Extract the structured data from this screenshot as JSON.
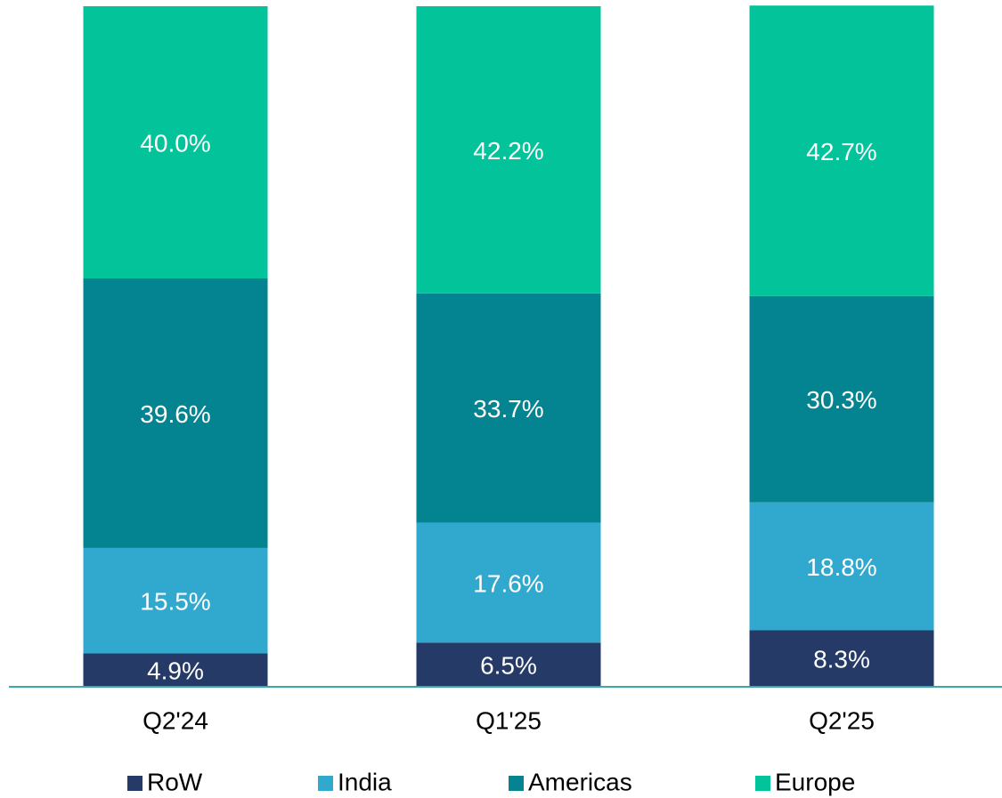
{
  "chart_data": {
    "type": "stacked_bar",
    "categories": [
      "Q2'24",
      "Q1'25",
      "Q2'25"
    ],
    "series": [
      {
        "name": "RoW",
        "color": "#253a66",
        "values": [
          4.9,
          6.5,
          8.3
        ],
        "value_labels": [
          "4.9%",
          "6.5%",
          "8.3%"
        ]
      },
      {
        "name": "India",
        "color": "#31a9cf",
        "values": [
          15.5,
          17.6,
          18.8
        ],
        "value_labels": [
          "15.5%",
          "17.6%",
          "18.8%"
        ]
      },
      {
        "name": "Americas",
        "color": "#038490",
        "values": [
          39.6,
          33.7,
          30.3
        ],
        "value_labels": [
          "39.6%",
          "33.7%",
          "30.3%"
        ]
      },
      {
        "name": "Europe",
        "color": "#02c39a",
        "values": [
          40.0,
          42.2,
          42.7
        ],
        "value_labels": [
          "40.0%",
          "42.2%",
          "42.7%"
        ]
      }
    ],
    "ylim": [
      0,
      100
    ],
    "legend": "bottom"
  }
}
